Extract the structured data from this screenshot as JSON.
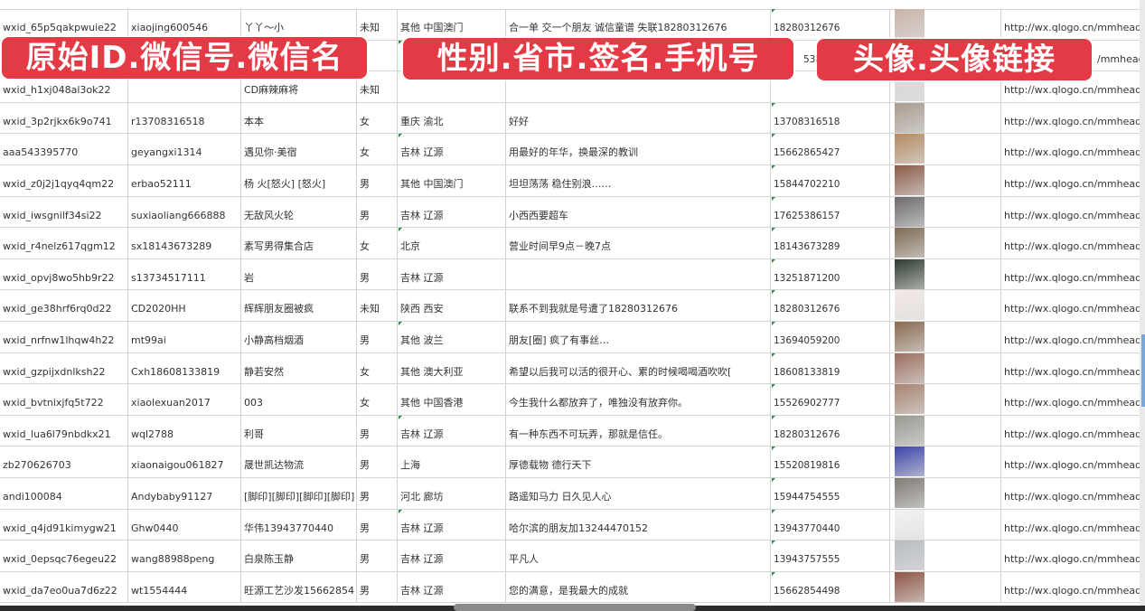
{
  "overlay_labels": [
    "原始ID.微信号.微信名",
    "性别.省市.签名.手机号",
    "头像.头像链接"
  ],
  "rows": [
    {
      "id": "wxid_65p5qakpwuie22",
      "wechat": "xiaojing600546",
      "name": "丫丫～小",
      "gender": "未知",
      "region": "其他 中国澳门",
      "signature": "合一单 交一个朋友 诚信童谱 失联18280312676",
      "phone": "18280312676",
      "url": "http://wx.qlogo.cn/mmhead",
      "avatar_color": "#c9b3a8"
    },
    {
      "id": "",
      "wechat": "",
      "name": "",
      "gender": "",
      "region": "",
      "signature": "",
      "phone": "5386",
      "url": "/mmhead",
      "avatar_color": "#5b6d9c"
    },
    {
      "id": "wxid_h1xj048al3ok22",
      "wechat": "",
      "name": "CD麻辣麻将",
      "gender": "未知",
      "region": "",
      "signature": "",
      "phone": "",
      "url": "http://wx.qlogo.cn/mmhead",
      "avatar_color": "#d9d9d9"
    },
    {
      "id": "wxid_3p2rjkx6k9o741",
      "wechat": "r13708316518",
      "name": "本本",
      "gender": "女",
      "region": "重庆 渝北",
      "signature": "好好",
      "phone": "13708316518",
      "url": "http://wx.qlogo.cn/mmhead",
      "avatar_color": "#a89b8f"
    },
    {
      "id": "aaa543395770",
      "wechat": "geyangxi1314",
      "name": "遇见你·美宿",
      "gender": "女",
      "region": "吉林 辽源",
      "signature": "用最好的年华，换最深的教训",
      "phone": "15662865427",
      "url": "http://wx.qlogo.cn/mmhead",
      "avatar_color": "#b58a62"
    },
    {
      "id": "wxid_z0j2j1qyq4qm22",
      "wechat": "erbao52111",
      "name": "杨 火[怒火] [怒火]",
      "gender": "男",
      "region": "其他 中国澳门",
      "signature": "坦坦荡荡 稳住别浪……",
      "phone": "15844702210",
      "url": "http://wx.qlogo.cn/mmhead",
      "avatar_color": "#8c5a48"
    },
    {
      "id": "wxid_iwsgnilf34si22",
      "wechat": "suxiaoliang666888",
      "name": "无敌风火轮",
      "gender": "男",
      "region": "吉林 辽源",
      "signature": "小西西要超车",
      "phone": "17625386157",
      "url": "http://wx.qlogo.cn/mmhead",
      "avatar_color": "#6e6a6a"
    },
    {
      "id": "wxid_r4nelz617qgm12",
      "wechat": "sx18143673289",
      "name": "素写男得集合店",
      "gender": "女",
      "region": "北京",
      "signature": "营业时间早9点－晚7点",
      "phone": "18143673289",
      "url": "http://wx.qlogo.cn/mmhead",
      "avatar_color": "#7d6a52"
    },
    {
      "id": "wxid_opvj8wo5hb9r22",
      "wechat": "s13734517111",
      "name": "岩",
      "gender": "男",
      "region": "吉林 辽源",
      "signature": "",
      "phone": "13251871200",
      "url": "http://wx.qlogo.cn/mmhead",
      "avatar_color": "#2d3a2e"
    },
    {
      "id": "wxid_ge38hrf6rq0d22",
      "wechat": "CD2020HH",
      "name": "辉辉朋友圈被疯",
      "gender": "未知",
      "region": "陕西 西安",
      "signature": "联系不到我就是号遭了18280312676",
      "phone": "18280312676",
      "url": "http://wx.qlogo.cn/mmhead",
      "avatar_color": "#f3e9e6"
    },
    {
      "id": "wxid_nrfnw1lhqw4h22",
      "wechat": "mt99ai",
      "name": "小静高档烟酒",
      "gender": "男",
      "region": "其他 波兰",
      "signature": "朋友[圈] 疯了有事丝…",
      "phone": "13694059200",
      "url": "http://wx.qlogo.cn/mmhead",
      "avatar_color": "#8a6a4e"
    },
    {
      "id": "wxid_gzpijxdnlksh22",
      "wechat": "Cxh18608133819",
      "name": "静若安然",
      "gender": "女",
      "region": "其他 澳大利亚",
      "signature": "希望以后我可以活的很开心、累的时候喝喝酒吹吹[",
      "phone": "18608133819",
      "url": "http://wx.qlogo.cn/mmhead",
      "avatar_color": "#9c6e5e"
    },
    {
      "id": "wxid_bvtnixjfq5t722",
      "wechat": "xiaolexuan2017",
      "name": "003",
      "gender": "女",
      "region": "其他 中国香港",
      "signature": "今生我什么都放弃了，唯独没有放弃你。",
      "phone": "15526902777",
      "url": "http://wx.qlogo.cn/mmhead",
      "avatar_color": "#a78370"
    },
    {
      "id": "wxid_lua6l79nbdkx21",
      "wechat": "wql2788",
      "name": "利哥",
      "gender": "男",
      "region": "吉林 辽源",
      "signature": "有一种东西不可玩弄，那就是信任。",
      "phone": "18280312676",
      "url": "http://wx.qlogo.cn/mmhead",
      "avatar_color": "#9a9a92"
    },
    {
      "id": "zb270626703",
      "wechat": "xiaonaigou061827",
      "name": "晟世凯达物流",
      "gender": "男",
      "region": "上海",
      "signature": "厚德载物 德行天下",
      "phone": "15520819816",
      "url": "http://wx.qlogo.cn/mmhead",
      "avatar_color": "#3b44a8"
    },
    {
      "id": "andi100084",
      "wechat": "Andybaby91127",
      "name": "[脚印][脚印][脚印][脚印]",
      "gender": "男",
      "region": "河北 廊坊",
      "signature": "路遥知马力 日久见人心",
      "phone": "15944754555",
      "url": "http://wx.qlogo.cn/mmhead",
      "avatar_color": "#7f7b74"
    },
    {
      "id": "wxid_q4jd91kimygw21",
      "wechat": "Ghw0440",
      "name": "华伟13943770440",
      "gender": "男",
      "region": "吉林 辽源",
      "signature": "哈尔滨的朋友加13244470152",
      "phone": "13943770440",
      "url": "http://wx.qlogo.cn/mmhead",
      "avatar_color": "#f2f2f2"
    },
    {
      "id": "wxid_0epsqc76egeu22",
      "wechat": "wang88988peng",
      "name": "白泉陈玉静",
      "gender": "男",
      "region": "吉林 辽源",
      "signature": "平凡人",
      "phone": "13943757555",
      "url": "http://wx.qlogo.cn/mmhead",
      "avatar_color": "#b8bcc2"
    },
    {
      "id": "wxid_da7eo0ua7d6z22",
      "wechat": "wt1554444",
      "name": "旺源工艺沙发15662854",
      "gender": "男",
      "region": "吉林 辽源",
      "signature": "您的满意，是我最大的成就",
      "phone": "15662854498",
      "url": "http://wx.qlogo.cn/mmhead/",
      "avatar_color": "#8e5544"
    }
  ]
}
